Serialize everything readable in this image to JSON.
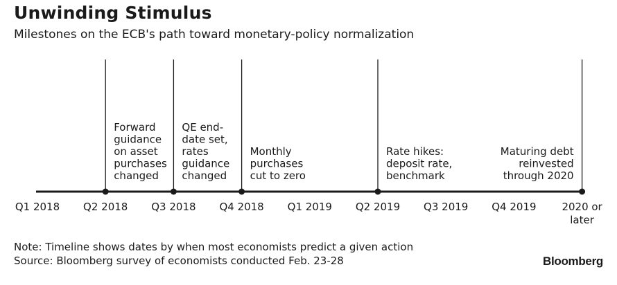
{
  "title": "Unwinding Stimulus",
  "subtitle": "Milestones on the ECB's path toward monetary-policy normalization",
  "notes": [
    "Note: Timeline shows dates by when most economists predict a given action",
    "Source: Bloomberg survey of economists conducted Feb. 23-28"
  ],
  "brand": "Bloomberg",
  "colors": {
    "axis": "#1a1a1a",
    "text": "#1a1a1a",
    "background": "#ffffff"
  },
  "chart_data": {
    "type": "timeline",
    "ticks": [
      [
        "Q1 2018"
      ],
      [
        "Q2 2018"
      ],
      [
        "Q3 2018"
      ],
      [
        "Q4 2018"
      ],
      [
        "Q1 2019"
      ],
      [
        "Q2 2019"
      ],
      [
        "Q3 2019"
      ],
      [
        "Q4 2019"
      ],
      [
        "2020 or",
        "later"
      ]
    ],
    "milestones": [
      {
        "tick": 1,
        "lines": [
          "Forward",
          "guidance",
          "on asset",
          "purchases",
          "changed"
        ],
        "align": "left"
      },
      {
        "tick": 2,
        "lines": [
          "QE end-",
          "date set,",
          "rates",
          "guidance",
          "changed"
        ],
        "align": "left"
      },
      {
        "tick": 3,
        "lines": [
          "Monthly",
          "purchases",
          "cut to zero"
        ],
        "align": "left"
      },
      {
        "tick": 5,
        "lines": [
          "Rate hikes:",
          "deposit rate,",
          "benchmark"
        ],
        "align": "left"
      },
      {
        "tick": 8,
        "lines": [
          "Maturing debt",
          "reinvested",
          "through 2020"
        ],
        "align": "right"
      }
    ]
  }
}
